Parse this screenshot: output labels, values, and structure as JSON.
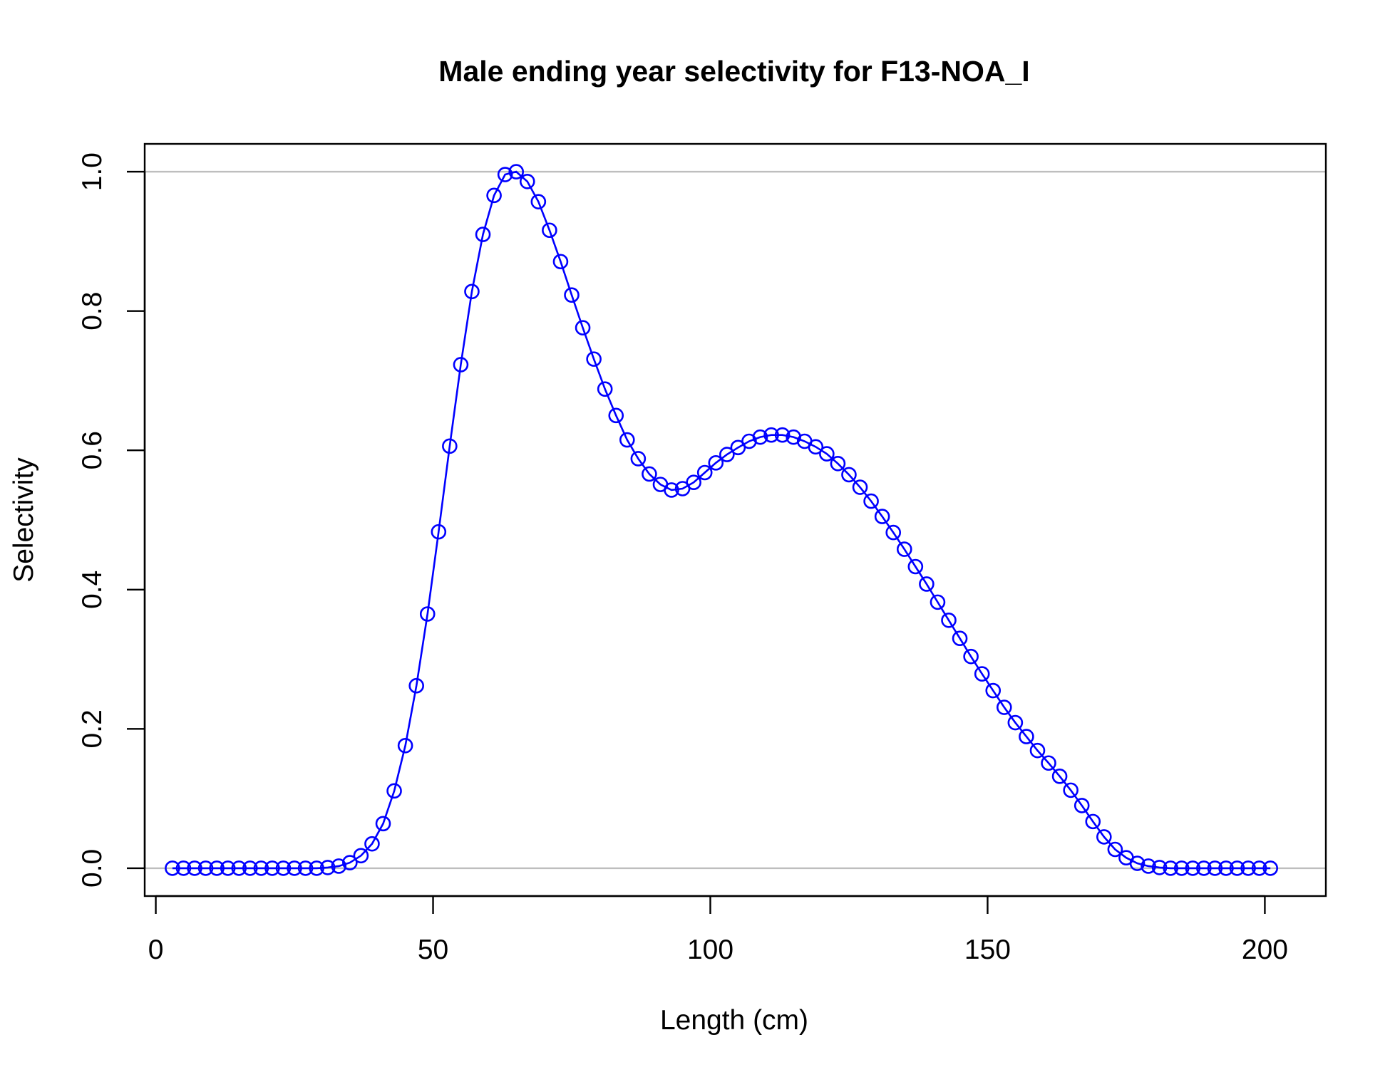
{
  "chart_data": {
    "type": "line",
    "title": "Male ending year selectivity for F13-NOA_I",
    "xlabel": "Length (cm)",
    "ylabel": "Selectivity",
    "xlim": [
      -2,
      211
    ],
    "ylim": [
      -0.04,
      1.04
    ],
    "xticks": [
      0,
      50,
      100,
      150,
      200
    ],
    "yticks": [
      0.0,
      0.2,
      0.4,
      0.6,
      0.8,
      1.0
    ],
    "xtick_labels": [
      "0",
      "50",
      "100",
      "150",
      "200"
    ],
    "ytick_labels": [
      "0.0",
      "0.2",
      "0.4",
      "0.6",
      "0.8",
      "1.0"
    ],
    "reference_lines": [
      0,
      1
    ],
    "reference_line_color": "#bebebe",
    "grid": false,
    "legend": "none",
    "marker": "open-circle",
    "series": [
      {
        "color": "#0000ff",
        "x": [
          3,
          5,
          7,
          9,
          11,
          13,
          15,
          17,
          19,
          21,
          23,
          25,
          27,
          29,
          31,
          33,
          35,
          37,
          39,
          41,
          43,
          45,
          47,
          49,
          51,
          53,
          55,
          57,
          59,
          61,
          63,
          65,
          67,
          69,
          71,
          73,
          75,
          77,
          79,
          81,
          83,
          85,
          87,
          89,
          91,
          93,
          95,
          97,
          99,
          101,
          103,
          105,
          107,
          109,
          111,
          113,
          115,
          117,
          119,
          121,
          123,
          125,
          127,
          129,
          131,
          133,
          135,
          137,
          139,
          141,
          143,
          145,
          147,
          149,
          151,
          153,
          155,
          157,
          159,
          161,
          163,
          165,
          167,
          169,
          171,
          173,
          175,
          177,
          179,
          181,
          183,
          185,
          187,
          189,
          191,
          193,
          195,
          197,
          199,
          201
        ],
        "values": [
          0.0,
          0.0,
          0.0,
          0.0,
          0.0,
          0.0,
          0.0,
          0.0,
          0.0,
          0.0,
          0.0,
          0.0,
          0.0,
          0.0,
          0.001,
          0.003,
          0.008,
          0.018,
          0.035,
          0.064,
          0.111,
          0.176,
          0.262,
          0.365,
          0.483,
          0.606,
          0.723,
          0.828,
          0.91,
          0.966,
          0.996,
          1.0,
          0.986,
          0.957,
          0.916,
          0.871,
          0.823,
          0.776,
          0.731,
          0.688,
          0.65,
          0.615,
          0.588,
          0.566,
          0.551,
          0.543,
          0.545,
          0.554,
          0.568,
          0.582,
          0.594,
          0.604,
          0.613,
          0.619,
          0.622,
          0.622,
          0.619,
          0.613,
          0.605,
          0.595,
          0.581,
          0.565,
          0.547,
          0.527,
          0.505,
          0.482,
          0.458,
          0.433,
          0.408,
          0.382,
          0.356,
          0.33,
          0.304,
          0.279,
          0.255,
          0.231,
          0.209,
          0.189,
          0.169,
          0.151,
          0.132,
          0.112,
          0.09,
          0.067,
          0.045,
          0.027,
          0.015,
          0.007,
          0.003,
          0.001,
          0.0,
          0.0,
          0.0,
          0.0,
          0.0,
          0.0,
          0.0,
          0.0,
          0.0,
          0.0
        ]
      }
    ]
  }
}
